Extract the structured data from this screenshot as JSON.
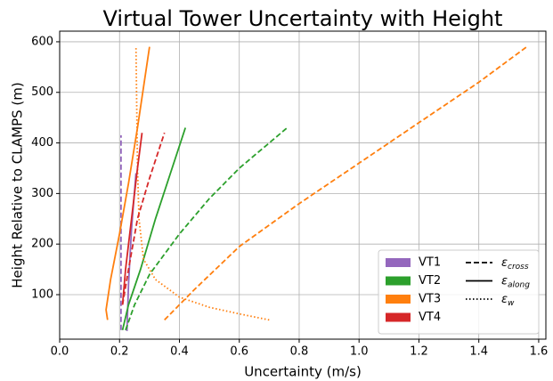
{
  "chart_data": {
    "type": "line",
    "title": "Virtual Tower Uncertainty with Height",
    "x_label": "Uncertainty (m/s)",
    "y_label": "Height Relative to CLAMPS (m)",
    "xlim": [
      0,
      1.624
    ],
    "ylim": [
      12,
      621
    ],
    "xticks": [
      {
        "value": 0,
        "label": "0.0"
      },
      {
        "value": 0.2,
        "label": "0.2"
      },
      {
        "value": 0.4,
        "label": "0.4"
      },
      {
        "value": 0.6,
        "label": "0.6"
      },
      {
        "value": 0.8,
        "label": "0.8"
      },
      {
        "value": 1.0,
        "label": "1.0"
      },
      {
        "value": 1.2,
        "label": "1.2"
      },
      {
        "value": 1.4,
        "label": "1.4"
      },
      {
        "value": 1.6,
        "label": "1.6"
      }
    ],
    "yticks": [
      100,
      200,
      300,
      400,
      500,
      600
    ],
    "grid": true,
    "legend": "lower right",
    "towers": [
      {
        "name": "VT1",
        "color": "#9467bd"
      },
      {
        "name": "VT2",
        "color": "#2ca02c"
      },
      {
        "name": "VT3",
        "color": "#ff7f0e"
      },
      {
        "name": "VT4",
        "color": "#d62728"
      }
    ],
    "components": [
      {
        "symbol": "ε",
        "subscript": "cross",
        "dash": "dashed"
      },
      {
        "symbol": "ε",
        "subscript": "along",
        "dash": "solid"
      },
      {
        "symbol": "ε",
        "subscript": "w",
        "dash": "dotted"
      }
    ],
    "series": [
      {
        "tower": 0,
        "component": 0,
        "x": [
          0.205,
          0.205,
          0.205
        ],
        "y": [
          30,
          200,
          415
        ]
      },
      {
        "tower": 0,
        "component": 1,
        "x": [
          0.225,
          0.23,
          0.24,
          0.255
        ],
        "y": [
          28,
          120,
          230,
          340
        ]
      },
      {
        "tower": 1,
        "component": 0,
        "x": [
          0.22,
          0.25,
          0.3,
          0.4,
          0.5,
          0.6,
          0.7,
          0.76
        ],
        "y": [
          30,
          80,
          140,
          220,
          290,
          350,
          400,
          430
        ]
      },
      {
        "tower": 1,
        "component": 1,
        "x": [
          0.21,
          0.23,
          0.27,
          0.32,
          0.37,
          0.42
        ],
        "y": [
          30,
          80,
          150,
          250,
          340,
          430
        ]
      },
      {
        "tower": 2,
        "component": 0,
        "x": [
          0.35,
          0.45,
          0.6,
          0.8,
          1.0,
          1.2,
          1.4,
          1.56
        ],
        "y": [
          50,
          110,
          195,
          280,
          360,
          440,
          520,
          590
        ]
      },
      {
        "tower": 2,
        "component": 1,
        "x": [
          0.16,
          0.155,
          0.17,
          0.2,
          0.23,
          0.26,
          0.3
        ],
        "y": [
          50,
          70,
          130,
          220,
          320,
          430,
          590
        ]
      },
      {
        "tower": 2,
        "component": 2,
        "x": [
          0.7,
          0.6,
          0.5,
          0.4,
          0.32,
          0.28,
          0.265,
          0.26,
          0.258,
          0.255
        ],
        "y": [
          50,
          62,
          75,
          95,
          130,
          170,
          250,
          350,
          450,
          590
        ]
      },
      {
        "tower": 3,
        "component": 0,
        "x": [
          0.21,
          0.23,
          0.26,
          0.3,
          0.35
        ],
        "y": [
          80,
          150,
          250,
          330,
          420
        ]
      },
      {
        "tower": 3,
        "component": 1,
        "x": [
          0.21,
          0.22,
          0.24,
          0.26,
          0.275
        ],
        "y": [
          80,
          150,
          250,
          350,
          420
        ]
      }
    ]
  }
}
